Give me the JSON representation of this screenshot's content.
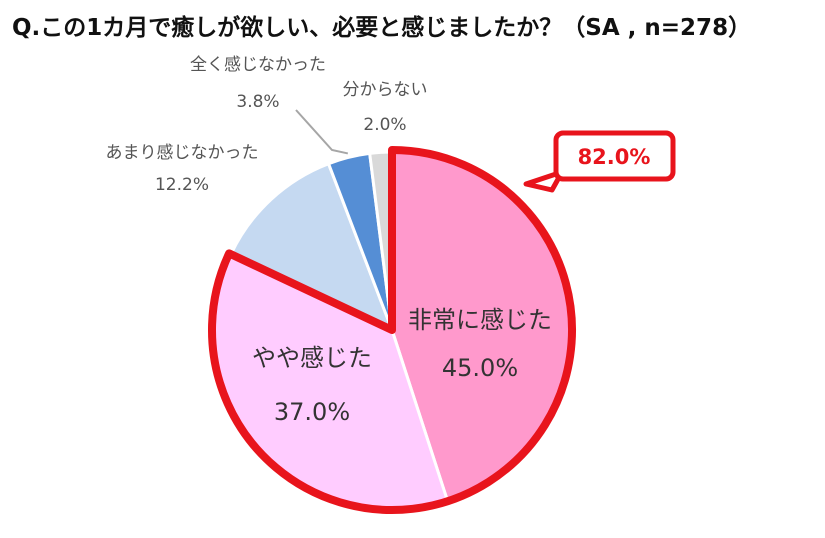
{
  "title": "Q.この1カ月で癒しが欲しい、必要と感じましたか？（SA , n=278）",
  "callout": {
    "text": "82.0%",
    "color": "#e8141c"
  },
  "chart_data": {
    "type": "pie",
    "title": "Q.この1カ月で癒しが欲しい、必要と感じましたか？（SA , n=278）",
    "unit": "%",
    "slices": [
      {
        "label": "非常に感じた",
        "value": 45.0,
        "display": "45.0%",
        "color": "#ff99cc"
      },
      {
        "label": "やや感じた",
        "value": 37.0,
        "display": "37.0%",
        "color": "#ffccff"
      },
      {
        "label": "あまり感じなかった",
        "value": 12.2,
        "display": "12.2%",
        "color": "#c5d9f1"
      },
      {
        "label": "全く感じなかった",
        "value": 3.8,
        "display": "3.8%",
        "color": "#558ed5"
      },
      {
        "label": "分からない",
        "value": 2.0,
        "display": "2.0%",
        "color": "#d9d9d9"
      }
    ],
    "highlight": {
      "slices": [
        "非常に感じた",
        "やや感じた"
      ],
      "total": "82.0%",
      "color": "#e8141c"
    }
  }
}
